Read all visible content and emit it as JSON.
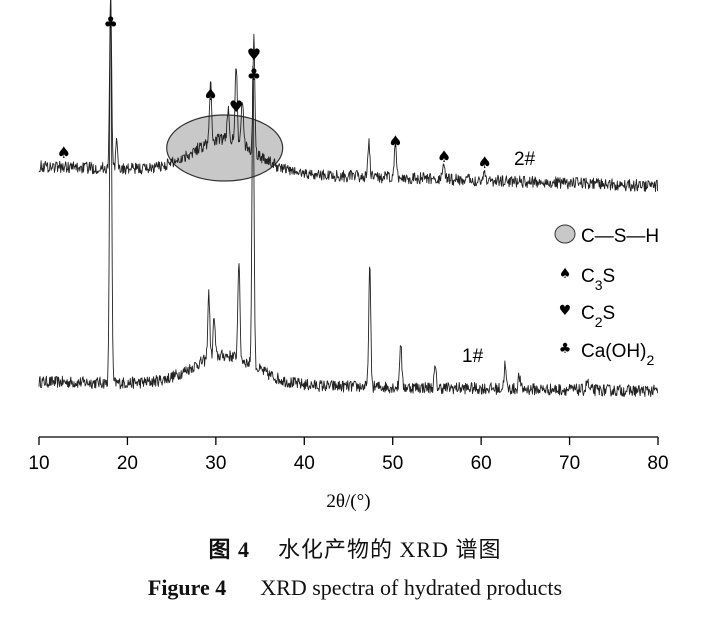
{
  "figure": {
    "caption_cn_label": "图 4",
    "caption_cn_text": "水化产物的 XRD 谱图",
    "caption_en_label": "Figure 4",
    "caption_en_text": "XRD spectra of hydrated products"
  },
  "chart_data": {
    "type": "line",
    "title": "",
    "xlabel": "2θ/(°)",
    "ylabel": "",
    "xlim": [
      10,
      80
    ],
    "xticks": [
      10,
      20,
      30,
      40,
      50,
      60,
      70,
      80
    ],
    "grid": false,
    "legend_position": "right",
    "legend": [
      {
        "marker": "ellipse",
        "label": "C—S—H"
      },
      {
        "marker": "spade",
        "label": "C3S"
      },
      {
        "marker": "heart",
        "label": "C2S"
      },
      {
        "marker": "club",
        "label": "Ca(OH)2"
      }
    ],
    "series": [
      {
        "name": "1#",
        "baseline_start": 1.0,
        "baseline_end": 0.3,
        "noise": 0.45,
        "hump": {
          "center": 31,
          "width": 5,
          "height": 2.2
        },
        "peaks": [
          [
            18.1,
            30
          ],
          [
            29.2,
            5
          ],
          [
            29.8,
            3
          ],
          [
            32.6,
            7.5
          ],
          [
            34.2,
            23
          ],
          [
            47.4,
            9
          ],
          [
            50.9,
            3.5
          ],
          [
            54.8,
            1.5
          ],
          [
            62.7,
            1.8
          ],
          [
            64.3,
            1
          ],
          [
            72.0,
            0.7
          ]
        ]
      },
      {
        "name": "2#",
        "baseline_start": 1.8,
        "baseline_end": 0.3,
        "noise": 0.45,
        "hump": {
          "center": 31,
          "width": 5,
          "height": 2.5
        },
        "peaks": [
          [
            18.1,
            13
          ],
          [
            18.8,
            2
          ],
          [
            29.4,
            4.5
          ],
          [
            31.4,
            2.5
          ],
          [
            32.3,
            6
          ],
          [
            33.0,
            3.5
          ],
          [
            34.3,
            8.5
          ],
          [
            47.3,
            2.5
          ],
          [
            50.3,
            2.5
          ],
          [
            55.8,
            1.2
          ],
          [
            60.4,
            0.8
          ]
        ]
      }
    ],
    "annotations": [
      {
        "series": "2#",
        "x": 18.1,
        "symbols": [
          "club"
        ]
      },
      {
        "series": "2#",
        "x": 12.8,
        "symbols": [
          "spade"
        ]
      },
      {
        "series": "2#",
        "x": 29.4,
        "symbols": [
          "spade"
        ]
      },
      {
        "series": "2#",
        "x": 32.3,
        "symbols": [
          "heart"
        ]
      },
      {
        "series": "2#",
        "x": 34.3,
        "symbols": [
          "heart",
          "club"
        ]
      },
      {
        "series": "2#",
        "x": 50.3,
        "symbols": [
          "spade"
        ]
      },
      {
        "series": "2#",
        "x": 55.8,
        "symbols": [
          "spade"
        ]
      },
      {
        "series": "2#",
        "x": 60.4,
        "symbols": [
          "spade"
        ]
      },
      {
        "series": "2#",
        "x": 31,
        "symbols": [
          "ellipse"
        ]
      }
    ]
  }
}
